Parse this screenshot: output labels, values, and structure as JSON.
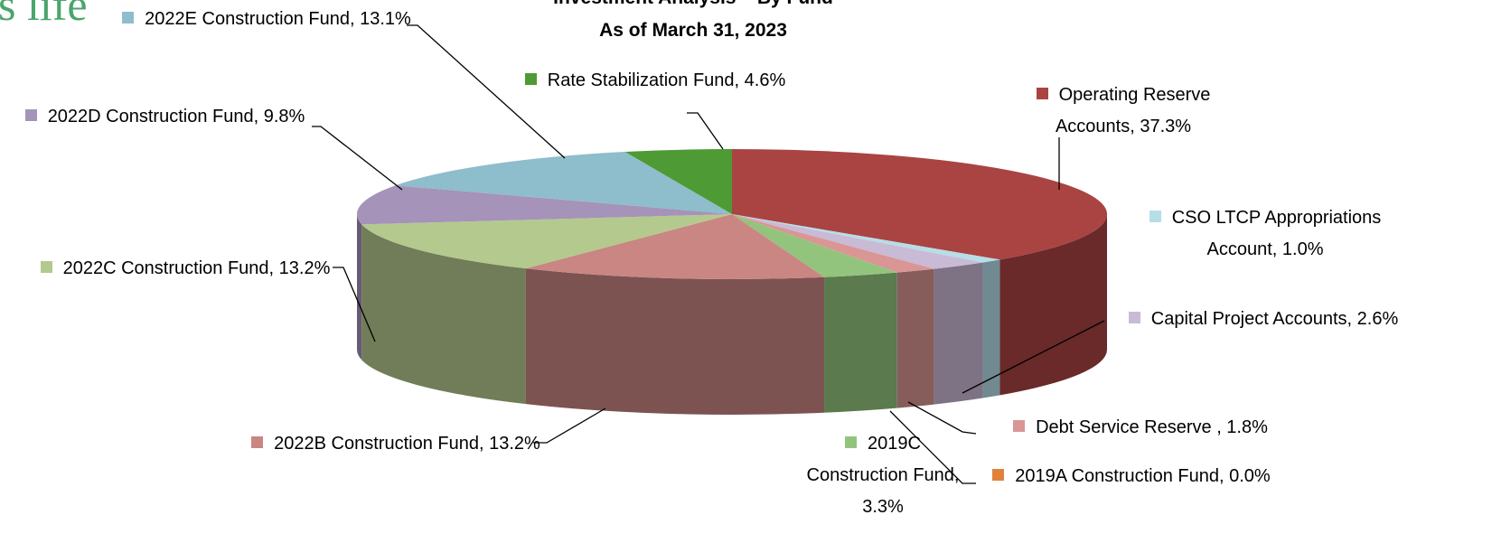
{
  "logo_text": "s life",
  "chart_data": {
    "type": "pie3d",
    "title": "Investment Analysis – By Fund",
    "subtitle": "As of March 31, 2023",
    "values": [
      37.3,
      1.0,
      2.6,
      1.8,
      0.0,
      3.3,
      13.2,
      13.2,
      9.8,
      13.1,
      4.6
    ],
    "value_labels": [
      "Operating Reserve Accounts, 37.3%",
      "CSO LTCP Appropriations Account, 1.0%",
      "Capital Project Accounts, 2.6%",
      "Debt Service Reserve , 1.8%",
      "2019A Construction Fund, 0.0%",
      "2019C Construction Fund, 3.3%",
      "2022B Construction Fund, 13.2%",
      "2022C Construction Fund, 13.2%",
      "2022D Construction Fund, 9.8%",
      "2022E Construction Fund, 13.1%",
      "Rate Stabilization Fund, 4.6%"
    ],
    "colors": [
      "#a94442",
      "#b7dde8",
      "#c9bad6",
      "#d99694",
      "#e0823c",
      "#93c47d",
      "#c98682",
      "#b4c98e",
      "#a593b9",
      "#8ebdcc",
      "#4e9a34"
    ]
  }
}
